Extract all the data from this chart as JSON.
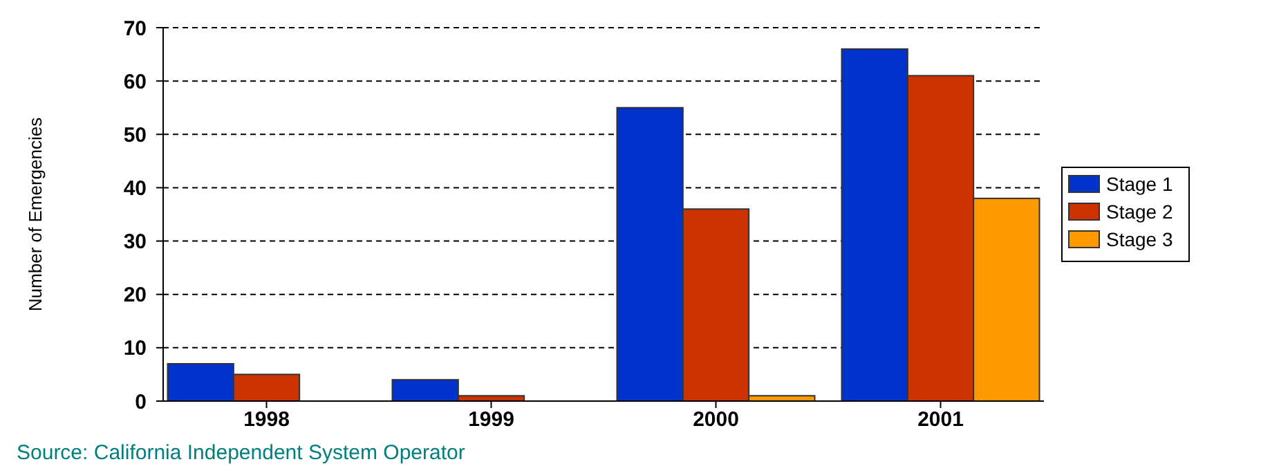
{
  "chart_data": {
    "type": "bar",
    "ylabel": "Number of Emergencies",
    "categories": [
      "1998",
      "1999",
      "2000",
      "2001"
    ],
    "series": [
      {
        "name": "Stage 1",
        "color": "#0033cc",
        "values": [
          7,
          4,
          55,
          66
        ]
      },
      {
        "name": "Stage 2",
        "color": "#cc3300",
        "values": [
          5,
          1,
          36,
          61
        ]
      },
      {
        "name": "Stage 3",
        "color": "#ff9900",
        "values": [
          0,
          0,
          1,
          38
        ]
      }
    ],
    "ylim": [
      0,
      70
    ],
    "yticks": [
      0,
      10,
      20,
      30,
      40,
      50,
      60,
      70
    ],
    "grid": "y",
    "legend": "right",
    "annotations": [
      "Source: California Independent System Operator"
    ]
  }
}
